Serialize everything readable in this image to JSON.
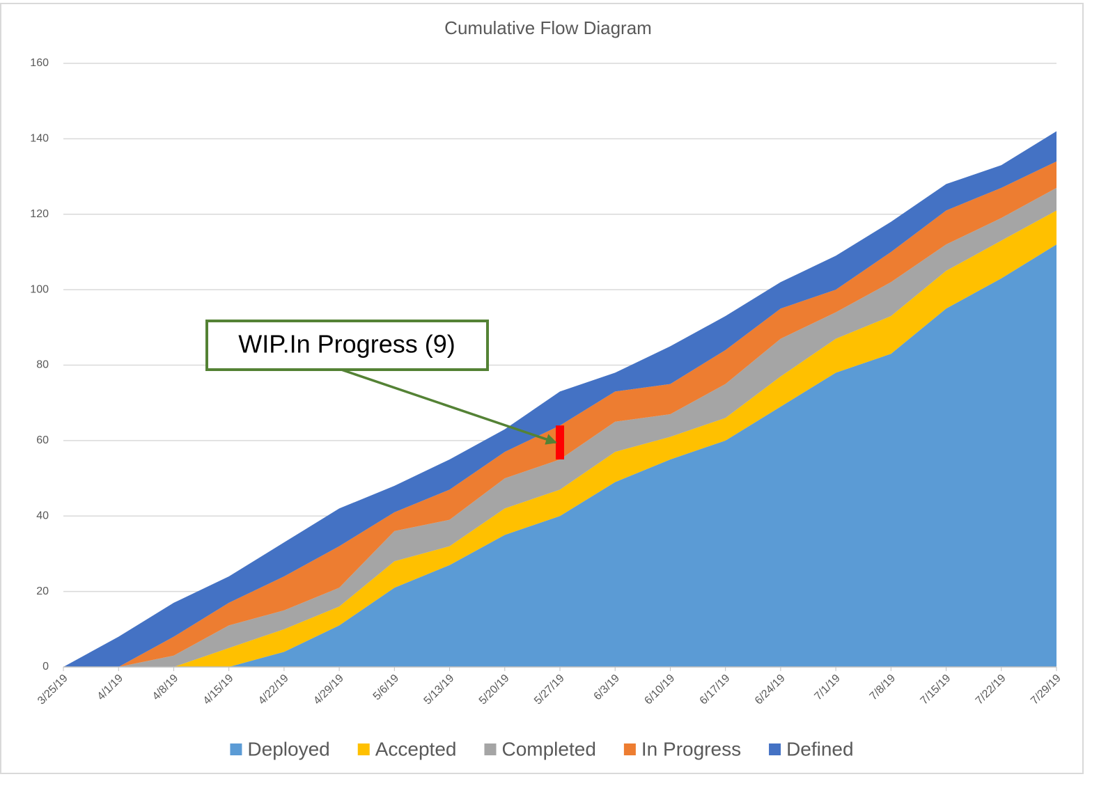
{
  "chart_data": {
    "type": "stacked_area",
    "title": "Cumulative Flow Diagram",
    "categories": [
      "3/25/19",
      "4/1/19",
      "4/8/19",
      "4/15/19",
      "4/22/19",
      "4/29/19",
      "5/6/19",
      "5/13/19",
      "5/20/19",
      "5/27/19",
      "6/3/19",
      "6/10/19",
      "6/17/19",
      "6/24/19",
      "7/1/19",
      "7/8/19",
      "7/15/19",
      "7/22/19",
      "7/29/19"
    ],
    "series": [
      {
        "name": "Deployed",
        "color": "#5b9bd5",
        "values": [
          0,
          0,
          0,
          0,
          4,
          11,
          21,
          27,
          35,
          40,
          49,
          55,
          60,
          69,
          78,
          83,
          95,
          103,
          112
        ]
      },
      {
        "name": "Accepted",
        "color": "#ffc000",
        "values": [
          0,
          0,
          0,
          5,
          6,
          5,
          7,
          5,
          7,
          7,
          8,
          6,
          6,
          8,
          9,
          10,
          10,
          10,
          9
        ]
      },
      {
        "name": "Completed",
        "color": "#a5a5a5",
        "values": [
          0,
          0,
          3,
          6,
          5,
          5,
          8,
          7,
          8,
          8,
          8,
          6,
          9,
          10,
          7,
          9,
          7,
          6,
          6
        ]
      },
      {
        "name": "In Progress",
        "color": "#ed7d31",
        "values": [
          0,
          0,
          5,
          6,
          9,
          11,
          5,
          8,
          7,
          9,
          8,
          8,
          9,
          8,
          6,
          8,
          9,
          8,
          7
        ]
      },
      {
        "name": "Defined",
        "color": "#4472c4",
        "values": [
          0,
          8,
          9,
          7,
          9,
          10,
          7,
          8,
          6,
          9,
          5,
          10,
          9,
          7,
          9,
          8,
          7,
          6,
          8
        ]
      }
    ],
    "ylim": [
      0,
      160
    ],
    "yticks": [
      0,
      20,
      40,
      60,
      80,
      100,
      120,
      140,
      160
    ],
    "grid": true,
    "legend": "bottom",
    "annotation": {
      "text": "WIP.In Progress (9)",
      "series": 3,
      "index": 9
    }
  }
}
